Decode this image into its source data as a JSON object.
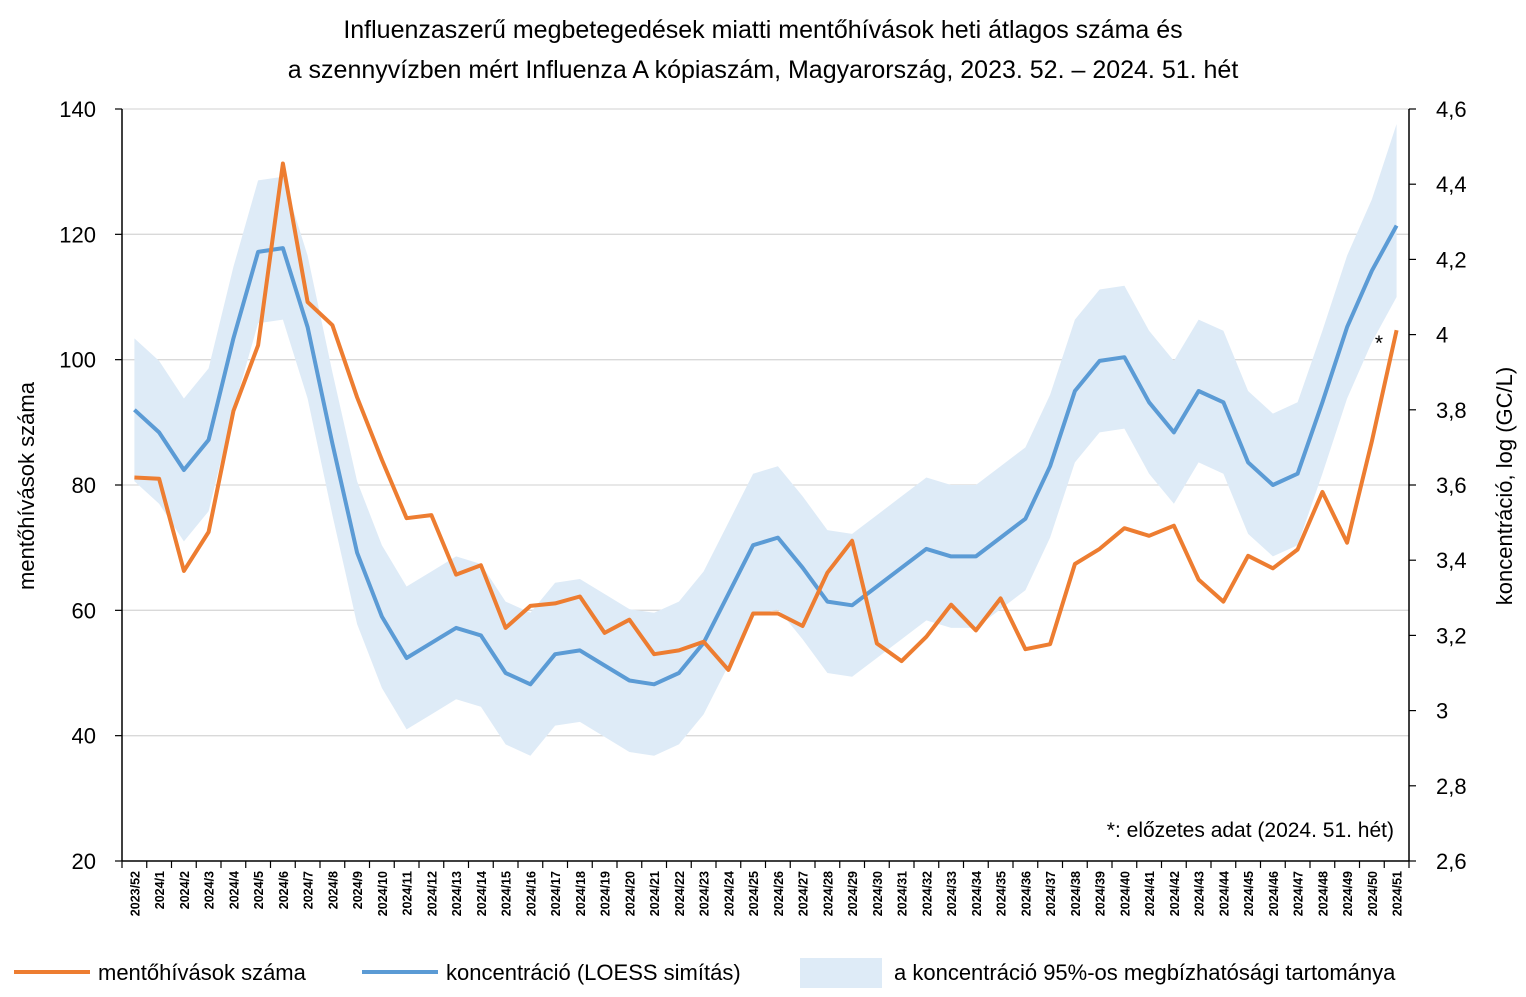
{
  "chart_data": {
    "type": "line",
    "title_line1": "Influenzaszerű megbetegedések miatti mentőhívások heti átlagos száma és",
    "title_line2": "a szennyvízben mért Influenza A kópiaszám, Magyarország, 2023. 52. – 2024. 51. hét",
    "ylabel_left": "mentőhívások száma",
    "ylabel_right": "koncentráció, log (GC/L)",
    "ylim_left": [
      20,
      140
    ],
    "ylim_right": [
      2.6,
      4.6
    ],
    "yticks_left": [
      "20",
      "40",
      "60",
      "80",
      "100",
      "120",
      "140"
    ],
    "yticks_right": [
      "2,6",
      "2,8",
      "3",
      "3,2",
      "3,4",
      "3,6",
      "3,8",
      "4",
      "4,2",
      "4,4",
      "4,6"
    ],
    "grid": true,
    "legend_position": "bottom",
    "categories": [
      "2023/52",
      "2024/1",
      "2024/2",
      "2024/3",
      "2024/4",
      "2024/5",
      "2024/6",
      "2024/7",
      "2024/8",
      "2024/9",
      "2024/10",
      "2024/11",
      "2024/12",
      "2024/13",
      "2024/14",
      "2024/15",
      "2024/16",
      "2024/17",
      "2024/18",
      "2024/19",
      "2024/20",
      "2024/21",
      "2024/22",
      "2024/23",
      "2024/24",
      "2024/25",
      "2024/26",
      "2024/27",
      "2024/28",
      "2024/29",
      "2024/30",
      "2024/31",
      "2024/32",
      "2024/33",
      "2024/34",
      "2024/35",
      "2024/36",
      "2024/37",
      "2024/38",
      "2024/39",
      "2024/40",
      "2024/41",
      "2024/42",
      "2024/43",
      "2024/44",
      "2024/45",
      "2024/46",
      "2024/47",
      "2024/48",
      "2024/49",
      "2024/50",
      "2024/51"
    ],
    "series": [
      {
        "name": "mentőhívások száma",
        "axis": "left",
        "color": "#ED7D31",
        "values": [
          81.2,
          81.0,
          66.3,
          72.5,
          91.8,
          102.3,
          131.3,
          109.2,
          105.5,
          94.0,
          84.0,
          74.7,
          75.2,
          65.7,
          67.2,
          57.2,
          60.7,
          61.1,
          62.2,
          56.4,
          58.5,
          53.0,
          53.6,
          55.0,
          50.5,
          59.5,
          59.5,
          57.5,
          66.0,
          71.1,
          54.7,
          51.9,
          55.8,
          60.9,
          56.8,
          61.9,
          53.8,
          54.6,
          67.4,
          69.8,
          73.1,
          71.9,
          73.5,
          64.9,
          61.4,
          68.7,
          66.7,
          69.7,
          78.9,
          70.8,
          87.0,
          104.7
        ]
      },
      {
        "name": "koncentráció (LOESS simítás)",
        "axis": "right",
        "color": "#5B9BD5",
        "values": [
          3.8,
          3.74,
          3.64,
          3.72,
          3.99,
          4.22,
          4.23,
          4.02,
          3.71,
          3.42,
          3.25,
          3.14,
          3.18,
          3.22,
          3.2,
          3.1,
          3.07,
          3.15,
          3.16,
          3.12,
          3.08,
          3.07,
          3.1,
          3.18,
          3.31,
          3.44,
          3.46,
          3.38,
          3.29,
          3.28,
          3.33,
          3.38,
          3.43,
          3.41,
          3.41,
          3.46,
          3.51,
          3.65,
          3.85,
          3.93,
          3.94,
          3.82,
          3.74,
          3.85,
          3.82,
          3.66,
          3.6,
          3.63,
          3.82,
          4.02,
          4.17,
          4.29
        ]
      },
      {
        "name": "a koncentráció 95%-os megbízhatósági tartománya",
        "axis": "right",
        "color": "#DEEBF7",
        "upper": [
          3.99,
          3.93,
          3.83,
          3.91,
          4.18,
          4.41,
          4.42,
          4.21,
          3.9,
          3.61,
          3.44,
          3.33,
          3.37,
          3.41,
          3.39,
          3.29,
          3.26,
          3.34,
          3.35,
          3.31,
          3.27,
          3.26,
          3.29,
          3.37,
          3.5,
          3.63,
          3.65,
          3.57,
          3.48,
          3.47,
          3.52,
          3.57,
          3.62,
          3.6,
          3.6,
          3.65,
          3.7,
          3.84,
          4.04,
          4.12,
          4.13,
          4.01,
          3.93,
          4.04,
          4.01,
          3.85,
          3.79,
          3.82,
          4.01,
          4.21,
          4.36,
          4.56
        ],
        "lower": [
          3.61,
          3.55,
          3.45,
          3.53,
          3.8,
          4.03,
          4.04,
          3.83,
          3.52,
          3.23,
          3.06,
          2.95,
          2.99,
          3.03,
          3.01,
          2.91,
          2.88,
          2.96,
          2.97,
          2.93,
          2.89,
          2.88,
          2.91,
          2.99,
          3.12,
          3.25,
          3.27,
          3.19,
          3.1,
          3.09,
          3.14,
          3.19,
          3.24,
          3.22,
          3.22,
          3.27,
          3.32,
          3.46,
          3.66,
          3.74,
          3.75,
          3.63,
          3.55,
          3.66,
          3.63,
          3.47,
          3.41,
          3.44,
          3.63,
          3.83,
          3.98,
          4.1
        ]
      }
    ],
    "annotations": {
      "asterisk": "*",
      "note": "*: előzetes adat (2024. 51. hét)"
    },
    "legend": [
      "mentőhívások száma",
      "koncentráció (LOESS simítás)",
      "a koncentráció 95%-os megbízhatósági tartománya"
    ]
  }
}
